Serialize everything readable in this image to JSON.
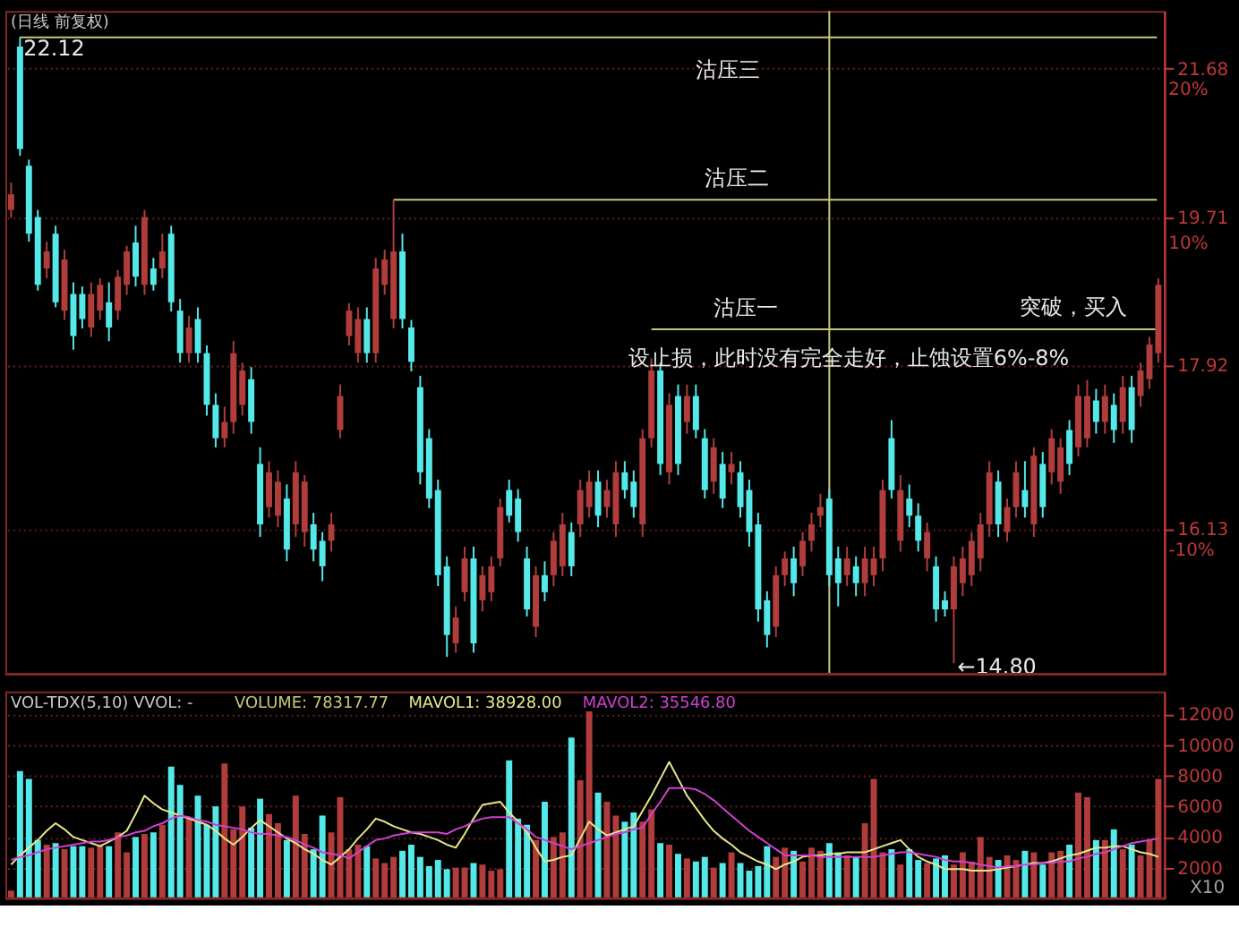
{
  "chart_data": [
    {
      "type": "candlestick",
      "title": "(日线 前复权)",
      "log": true,
      "tick_labels": "y",
      "grid": "y",
      "ylim": [
        14.7,
        22.5
      ],
      "yticks": [
        21.68,
        19.71,
        17.92,
        16.13
      ],
      "y2lim": [
        -19.4,
        23.8
      ],
      "y2ticks": [
        {
          "value": 20,
          "label": "20%"
        },
        {
          "value": 10,
          "label": "10%"
        },
        {
          "value": -10,
          "label": "-10%"
        }
      ],
      "categories": [
        null,
        null,
        null,
        null,
        null,
        null,
        null,
        null,
        null,
        null,
        null,
        null,
        null,
        null,
        null,
        null,
        null,
        null,
        null,
        null,
        null,
        null,
        null,
        null,
        null,
        null,
        null,
        null,
        null,
        null,
        null,
        null,
        null,
        null,
        null,
        null,
        null,
        null,
        null,
        null,
        null,
        null,
        null,
        null,
        null,
        null,
        null,
        null,
        null,
        null,
        null,
        null,
        null,
        null,
        null,
        null,
        null,
        null,
        null,
        null,
        null,
        null,
        null,
        null,
        null,
        null,
        null,
        null,
        null,
        null,
        null,
        null,
        null,
        null,
        null,
        null,
        null,
        null,
        null,
        null,
        null,
        null,
        null,
        null,
        null,
        null,
        null,
        null,
        null,
        null,
        null,
        null,
        null,
        null,
        null,
        null,
        null,
        null,
        null,
        null,
        null,
        null,
        null,
        null,
        null,
        null,
        null,
        null,
        null,
        null,
        null,
        null,
        null,
        null,
        null,
        null,
        null,
        null,
        null,
        null,
        null,
        null,
        null,
        null,
        null,
        null,
        null,
        null,
        null,
        null
      ],
      "ohlc": [
        [
          19.8,
          20.15,
          19.7,
          20.0
        ],
        [
          21.99,
          22.12,
          20.5,
          20.59
        ],
        [
          20.37,
          20.45,
          19.4,
          19.5
        ],
        [
          19.71,
          19.8,
          18.8,
          18.87
        ],
        [
          19.07,
          19.4,
          18.95,
          19.28
        ],
        [
          19.5,
          19.6,
          18.6,
          18.66
        ],
        [
          18.56,
          19.3,
          18.45,
          19.18
        ],
        [
          18.76,
          18.9,
          18.1,
          18.26
        ],
        [
          18.76,
          18.85,
          18.35,
          18.46
        ],
        [
          18.36,
          18.9,
          18.25,
          18.76
        ],
        [
          18.56,
          18.95,
          18.45,
          18.87
        ],
        [
          18.66,
          18.9,
          18.2,
          18.36
        ],
        [
          18.56,
          19.05,
          18.45,
          18.97
        ],
        [
          18.87,
          19.35,
          18.75,
          19.28
        ],
        [
          19.39,
          19.6,
          18.85,
          18.97
        ],
        [
          18.87,
          19.8,
          18.75,
          19.71
        ],
        [
          19.07,
          19.2,
          18.8,
          18.87
        ],
        [
          19.07,
          19.5,
          18.95,
          19.28
        ],
        [
          19.5,
          19.6,
          18.55,
          18.66
        ],
        [
          18.56,
          18.7,
          17.95,
          18.06
        ],
        [
          18.06,
          18.5,
          17.95,
          18.36
        ],
        [
          18.46,
          18.6,
          17.95,
          18.06
        ],
        [
          18.06,
          18.15,
          17.35,
          17.47
        ],
        [
          17.47,
          17.6,
          17.0,
          17.1
        ],
        [
          17.1,
          17.45,
          17.0,
          17.28
        ],
        [
          17.28,
          18.2,
          17.15,
          18.06
        ],
        [
          17.47,
          17.95,
          17.35,
          17.86
        ],
        [
          17.76,
          17.9,
          17.15,
          17.28
        ],
        [
          16.82,
          17.0,
          16.05,
          16.18
        ],
        [
          16.36,
          16.85,
          16.25,
          16.73
        ],
        [
          16.27,
          16.75,
          16.15,
          16.63
        ],
        [
          16.45,
          16.6,
          15.8,
          15.92
        ],
        [
          16.18,
          16.85,
          16.05,
          16.73
        ],
        [
          16.1,
          16.7,
          15.95,
          16.63
        ],
        [
          16.18,
          16.3,
          15.8,
          15.92
        ],
        [
          16.01,
          16.1,
          15.6,
          15.75
        ],
        [
          16.01,
          16.3,
          15.9,
          16.18
        ],
        [
          17.19,
          17.7,
          17.1,
          17.57
        ],
        [
          18.26,
          18.65,
          18.15,
          18.56
        ],
        [
          18.06,
          18.6,
          17.95,
          18.46
        ],
        [
          18.46,
          18.6,
          17.95,
          18.06
        ],
        [
          18.06,
          19.2,
          17.95,
          19.07
        ],
        [
          18.87,
          19.3,
          18.75,
          19.18
        ],
        [
          18.46,
          19.93,
          18.35,
          19.28
        ],
        [
          19.28,
          19.5,
          18.35,
          18.46
        ],
        [
          18.36,
          18.45,
          17.85,
          17.96
        ],
        [
          17.67,
          17.8,
          16.6,
          16.73
        ],
        [
          17.1,
          17.2,
          16.35,
          16.45
        ],
        [
          16.54,
          16.65,
          15.55,
          15.66
        ],
        [
          15.75,
          15.85,
          14.86,
          15.07
        ],
        [
          14.99,
          15.35,
          14.9,
          15.24
        ],
        [
          15.49,
          15.95,
          15.4,
          15.83
        ],
        [
          15.83,
          15.95,
          14.9,
          14.99
        ],
        [
          15.41,
          15.75,
          15.3,
          15.66
        ],
        [
          15.49,
          15.85,
          15.4,
          15.75
        ],
        [
          15.83,
          16.45,
          15.75,
          16.36
        ],
        [
          16.54,
          16.65,
          16.2,
          16.27
        ],
        [
          16.45,
          16.55,
          16.0,
          16.1
        ],
        [
          15.83,
          15.95,
          15.25,
          15.32
        ],
        [
          15.15,
          15.75,
          15.05,
          15.66
        ],
        [
          15.66,
          15.8,
          15.4,
          15.49
        ],
        [
          15.66,
          16.1,
          15.55,
          16.01
        ],
        [
          15.75,
          16.3,
          15.65,
          16.18
        ],
        [
          16.1,
          16.2,
          15.65,
          15.75
        ],
        [
          16.18,
          16.65,
          16.05,
          16.54
        ],
        [
          16.36,
          16.75,
          16.25,
          16.63
        ],
        [
          16.63,
          16.75,
          16.15,
          16.27
        ],
        [
          16.36,
          16.65,
          16.25,
          16.54
        ],
        [
          16.18,
          16.85,
          16.05,
          16.73
        ],
        [
          16.73,
          16.85,
          16.45,
          16.54
        ],
        [
          16.63,
          16.75,
          16.25,
          16.36
        ],
        [
          16.18,
          17.2,
          16.05,
          17.1
        ],
        [
          17.1,
          18.0,
          17.0,
          17.86
        ],
        [
          17.86,
          17.95,
          16.7,
          16.82
        ],
        [
          16.73,
          17.6,
          16.6,
          17.47
        ],
        [
          17.57,
          17.7,
          16.7,
          16.82
        ],
        [
          17.28,
          17.7,
          17.15,
          17.57
        ],
        [
          17.57,
          17.7,
          17.1,
          17.19
        ],
        [
          17.1,
          17.2,
          16.45,
          16.54
        ],
        [
          16.63,
          17.1,
          16.5,
          17.0
        ],
        [
          16.82,
          16.95,
          16.35,
          16.45
        ],
        [
          16.73,
          16.95,
          16.6,
          16.82
        ],
        [
          16.73,
          16.85,
          16.25,
          16.36
        ],
        [
          16.54,
          16.65,
          15.95,
          16.1
        ],
        [
          16.18,
          16.3,
          15.2,
          15.32
        ],
        [
          15.41,
          15.5,
          14.95,
          15.07
        ],
        [
          15.15,
          15.75,
          15.05,
          15.66
        ],
        [
          15.66,
          15.9,
          15.55,
          15.83
        ],
        [
          15.83,
          15.95,
          15.45,
          15.58
        ],
        [
          15.75,
          16.1,
          15.65,
          16.01
        ],
        [
          16.01,
          16.3,
          15.9,
          16.18
        ],
        [
          16.27,
          16.5,
          16.15,
          16.36
        ],
        [
          16.45,
          16.55,
          15.55,
          15.66
        ],
        [
          15.83,
          15.95,
          15.35,
          15.58
        ],
        [
          15.66,
          15.95,
          15.55,
          15.83
        ],
        [
          15.75,
          15.85,
          15.45,
          15.58
        ],
        [
          15.58,
          15.95,
          15.45,
          15.83
        ],
        [
          15.66,
          15.95,
          15.55,
          15.83
        ],
        [
          15.83,
          16.65,
          15.7,
          16.54
        ],
        [
          17.1,
          17.3,
          16.45,
          16.54
        ],
        [
          16.01,
          16.7,
          15.9,
          16.54
        ],
        [
          16.45,
          16.6,
          16.15,
          16.27
        ],
        [
          16.27,
          16.4,
          15.9,
          16.01
        ],
        [
          15.83,
          16.2,
          15.7,
          16.1
        ],
        [
          15.75,
          15.85,
          15.2,
          15.32
        ],
        [
          15.41,
          15.5,
          15.25,
          15.32
        ],
        [
          15.32,
          15.85,
          14.8,
          15.75
        ],
        [
          15.58,
          15.95,
          15.45,
          15.83
        ],
        [
          15.66,
          16.1,
          15.55,
          16.01
        ],
        [
          15.83,
          16.3,
          15.7,
          16.18
        ],
        [
          16.18,
          16.85,
          16.05,
          16.73
        ],
        [
          16.63,
          16.75,
          16.05,
          16.18
        ],
        [
          16.1,
          16.45,
          16.0,
          16.36
        ],
        [
          16.36,
          16.85,
          16.25,
          16.73
        ],
        [
          16.54,
          16.85,
          16.25,
          16.36
        ],
        [
          16.18,
          17.0,
          16.05,
          16.91
        ],
        [
          16.82,
          16.95,
          16.25,
          16.36
        ],
        [
          16.73,
          17.2,
          16.6,
          17.1
        ],
        [
          16.63,
          17.1,
          16.5,
          17.0
        ],
        [
          17.19,
          17.3,
          16.7,
          16.82
        ],
        [
          17.0,
          17.7,
          16.9,
          17.57
        ],
        [
          17.1,
          17.75,
          17.0,
          17.57
        ],
        [
          17.52,
          17.65,
          17.15,
          17.28
        ],
        [
          17.28,
          17.7,
          17.15,
          17.57
        ],
        [
          17.47,
          17.6,
          17.05,
          17.19
        ],
        [
          17.28,
          17.8,
          17.15,
          17.67
        ],
        [
          17.67,
          17.8,
          17.05,
          17.19
        ],
        [
          17.57,
          17.95,
          17.45,
          17.86
        ],
        [
          17.76,
          18.25,
          17.65,
          18.16
        ],
        [
          18.06,
          18.95,
          17.95,
          18.87
        ]
      ],
      "colors": [
        "#b03c3c",
        "#55e8e8",
        "#55e8e8",
        "#55e8e8",
        "#b03c3c",
        "#55e8e8",
        "#b03c3c",
        "#55e8e8",
        "#55e8e8",
        "#b03c3c",
        "#b03c3c",
        "#55e8e8",
        "#b03c3c",
        "#b03c3c",
        "#55e8e8",
        "#b03c3c",
        "#55e8e8",
        "#b03c3c",
        "#55e8e8",
        "#55e8e8",
        "#b03c3c",
        "#55e8e8",
        "#55e8e8",
        "#55e8e8",
        "#b03c3c",
        "#b03c3c",
        "#b03c3c",
        "#55e8e8",
        "#55e8e8",
        "#b03c3c",
        "#b03c3c",
        "#55e8e8",
        "#b03c3c",
        "#b03c3c",
        "#55e8e8",
        "#55e8e8",
        "#b03c3c",
        "#b03c3c",
        "#b03c3c",
        "#b03c3c",
        "#55e8e8",
        "#b03c3c",
        "#b03c3c",
        "#b03c3c",
        "#55e8e8",
        "#55e8e8",
        "#55e8e8",
        "#55e8e8",
        "#55e8e8",
        "#55e8e8",
        "#b03c3c",
        "#b03c3c",
        "#55e8e8",
        "#b03c3c",
        "#b03c3c",
        "#b03c3c",
        "#55e8e8",
        "#55e8e8",
        "#55e8e8",
        "#b03c3c",
        "#55e8e8",
        "#b03c3c",
        "#b03c3c",
        "#55e8e8",
        "#b03c3c",
        "#b03c3c",
        "#55e8e8",
        "#b03c3c",
        "#b03c3c",
        "#55e8e8",
        "#55e8e8",
        "#b03c3c",
        "#b03c3c",
        "#55e8e8",
        "#b03c3c",
        "#55e8e8",
        "#b03c3c",
        "#55e8e8",
        "#55e8e8",
        "#b03c3c",
        "#55e8e8",
        "#b03c3c",
        "#55e8e8",
        "#55e8e8",
        "#55e8e8",
        "#55e8e8",
        "#b03c3c",
        "#b03c3c",
        "#55e8e8",
        "#b03c3c",
        "#b03c3c",
        "#b03c3c",
        "#55e8e8",
        "#55e8e8",
        "#b03c3c",
        "#55e8e8",
        "#b03c3c",
        "#b03c3c",
        "#b03c3c",
        "#55e8e8",
        "#b03c3c",
        "#55e8e8",
        "#55e8e8",
        "#b03c3c",
        "#55e8e8",
        "#55e8e8",
        "#b03c3c",
        "#b03c3c",
        "#b03c3c",
        "#b03c3c",
        "#b03c3c",
        "#55e8e8",
        "#b03c3c",
        "#b03c3c",
        "#55e8e8",
        "#b03c3c",
        "#55e8e8",
        "#b03c3c",
        "#b03c3c",
        "#55e8e8",
        "#b03c3c",
        "#b03c3c",
        "#55e8e8",
        "#b03c3c",
        "#55e8e8",
        "#b03c3c",
        "#55e8e8",
        "#b03c3c",
        "#b03c3c",
        "#b03c3c"
      ],
      "ref_lines": [
        {
          "axis": "y",
          "value": 22.12,
          "label": "沽压三",
          "color": "#c8c878"
        },
        {
          "axis": "y",
          "value": 19.93,
          "label": "沽压二",
          "color": "#c8c878"
        },
        {
          "axis": "y",
          "value": 18.34,
          "label": "沽压一",
          "color": "#c8c878"
        }
      ],
      "annotations": [
        "22.12",
        "突破，买入",
        "设止损，此时没有完全走好，止蚀设置6%-8%",
        "←14.80"
      ]
    },
    {
      "type": "bar",
      "title": "VOL-TDX(5,10) VVOL: -",
      "tick_labels": "y",
      "grid": "y",
      "ylim": [
        0,
        13500
      ],
      "yticks": [
        2000,
        4000,
        6000,
        8000,
        10000,
        12000
      ],
      "categories": [
        null,
        null,
        null,
        null,
        null,
        null,
        null,
        null,
        null,
        null,
        null,
        null,
        null,
        null,
        null,
        null,
        null,
        null,
        null,
        null,
        null,
        null,
        null,
        null,
        null,
        null,
        null,
        null,
        null,
        null,
        null,
        null,
        null,
        null,
        null,
        null,
        null,
        null,
        null,
        null,
        null,
        null,
        null,
        null,
        null,
        null,
        null,
        null,
        null,
        null,
        null,
        null,
        null,
        null,
        null,
        null,
        null,
        null,
        null,
        null,
        null,
        null,
        null,
        null,
        null,
        null,
        null,
        null,
        null,
        null,
        null,
        null,
        null,
        null,
        null,
        null,
        null,
        null,
        null,
        null,
        null,
        null,
        null,
        null,
        null,
        null,
        null,
        null,
        null,
        null,
        null,
        null,
        null,
        null,
        null,
        null,
        null,
        null,
        null,
        null,
        null,
        null,
        null,
        null,
        null,
        null,
        null,
        null,
        null,
        null,
        null,
        null,
        null,
        null,
        null,
        null,
        null,
        null,
        null,
        null,
        null,
        null,
        null,
        null,
        null,
        null,
        null,
        null,
        null,
        null
      ],
      "series": [
        {
          "values": [
            500,
            8300,
            7800,
            3800,
            3500,
            3600,
            3200,
            3400,
            3400,
            3300,
            3500,
            3400,
            4300,
            3000,
            4000,
            4200,
            4300,
            4800,
            8600,
            7400,
            5300,
            6700,
            4800,
            6000,
            8800,
            4500,
            6000,
            4600,
            6500,
            5500,
            4900,
            3800,
            6700,
            4200,
            3200,
            5400,
            4300,
            6600,
            3200,
            3500,
            3400,
            2600,
            2300,
            2700,
            3100,
            3500,
            2700,
            2100,
            2500,
            1900,
            2000,
            2000,
            2300,
            2200,
            1800,
            1900,
            9000,
            5200,
            4800,
            3800,
            6300,
            4000,
            4300,
            10500,
            7700,
            12200,
            6900,
            6300,
            5400,
            5000,
            5600,
            5000,
            5800,
            3600,
            3500,
            2900,
            2600,
            2400,
            2700,
            2000,
            2300,
            3000,
            2300,
            1800,
            2100,
            3400,
            2700,
            3300,
            3100,
            2400,
            3300,
            3100,
            3600,
            3000,
            2800,
            2700,
            4900,
            7800,
            3000,
            3200,
            2200,
            3200,
            2500,
            2300,
            2600,
            2800,
            2200,
            3000,
            2400,
            4000,
            2700,
            2500,
            2800,
            2500,
            3100,
            3000,
            2200,
            3000,
            3100,
            3500,
            6900,
            6600,
            3800,
            3800,
            4500,
            3200,
            3500,
            2800,
            3800,
            7800
          ],
          "colors": [
            "#b03c3c",
            "#55e8e8",
            "#55e8e8",
            "#55e8e8",
            "#b03c3c",
            "#55e8e8",
            "#b03c3c",
            "#55e8e8",
            "#55e8e8",
            "#b03c3c",
            "#b03c3c",
            "#55e8e8",
            "#b03c3c",
            "#b03c3c",
            "#55e8e8",
            "#b03c3c",
            "#55e8e8",
            "#b03c3c",
            "#55e8e8",
            "#55e8e8",
            "#b03c3c",
            "#55e8e8",
            "#55e8e8",
            "#55e8e8",
            "#b03c3c",
            "#b03c3c",
            "#b03c3c",
            "#55e8e8",
            "#55e8e8",
            "#b03c3c",
            "#b03c3c",
            "#55e8e8",
            "#b03c3c",
            "#b03c3c",
            "#55e8e8",
            "#55e8e8",
            "#b03c3c",
            "#b03c3c",
            "#b03c3c",
            "#b03c3c",
            "#55e8e8",
            "#b03c3c",
            "#b03c3c",
            "#b03c3c",
            "#55e8e8",
            "#55e8e8",
            "#55e8e8",
            "#55e8e8",
            "#55e8e8",
            "#55e8e8",
            "#b03c3c",
            "#b03c3c",
            "#55e8e8",
            "#b03c3c",
            "#b03c3c",
            "#b03c3c",
            "#55e8e8",
            "#55e8e8",
            "#55e8e8",
            "#b03c3c",
            "#55e8e8",
            "#b03c3c",
            "#b03c3c",
            "#55e8e8",
            "#b03c3c",
            "#b03c3c",
            "#55e8e8",
            "#b03c3c",
            "#b03c3c",
            "#55e8e8",
            "#55e8e8",
            "#b03c3c",
            "#b03c3c",
            "#55e8e8",
            "#b03c3c",
            "#55e8e8",
            "#b03c3c",
            "#55e8e8",
            "#55e8e8",
            "#b03c3c",
            "#55e8e8",
            "#b03c3c",
            "#55e8e8",
            "#55e8e8",
            "#55e8e8",
            "#55e8e8",
            "#b03c3c",
            "#b03c3c",
            "#55e8e8",
            "#b03c3c",
            "#b03c3c",
            "#b03c3c",
            "#55e8e8",
            "#55e8e8",
            "#b03c3c",
            "#55e8e8",
            "#b03c3c",
            "#b03c3c",
            "#b03c3c",
            "#55e8e8",
            "#b03c3c",
            "#55e8e8",
            "#55e8e8",
            "#b03c3c",
            "#55e8e8",
            "#55e8e8",
            "#b03c3c",
            "#b03c3c",
            "#b03c3c",
            "#b03c3c",
            "#b03c3c",
            "#55e8e8",
            "#b03c3c",
            "#b03c3c",
            "#55e8e8",
            "#b03c3c",
            "#55e8e8",
            "#b03c3c",
            "#b03c3c",
            "#55e8e8",
            "#b03c3c",
            "#b03c3c",
            "#55e8e8",
            "#b03c3c",
            "#55e8e8",
            "#b03c3c",
            "#55e8e8",
            "#b03c3c",
            "#b03c3c",
            "#b03c3c"
          ]
        },
        {
          "name": "MAVOL1: 38928.00",
          "type": "line",
          "color": "#e6e68c",
          "values": [
            2200,
            2800,
            3300,
            3800,
            4400,
            4900,
            4500,
            4000,
            3800,
            3600,
            3400,
            3700,
            4000,
            4400,
            5500,
            6700,
            6200,
            5800,
            5600,
            5400,
            5200,
            5000,
            4800,
            4400,
            3900,
            3500,
            4000,
            4600,
            5100,
            4700,
            4300,
            3900,
            3600,
            3200,
            2900,
            2500,
            2200,
            2700,
            3200,
            3900,
            4500,
            5200,
            5000,
            4700,
            4500,
            4300,
            4200,
            4000,
            3800,
            3500,
            3300,
            4200,
            5200,
            6100,
            6200,
            6300,
            5600,
            5000,
            4300,
            3300,
            2400,
            2500,
            2700,
            2800,
            3900,
            5000,
            4500,
            4100,
            4300,
            4500,
            4700,
            5700,
            6700,
            7800,
            8900,
            7800,
            6700,
            5900,
            5100,
            4400,
            3900,
            3500,
            3000,
            2700,
            2400,
            2200,
            1900,
            2200,
            2400,
            2700,
            2800,
            2800,
            2900,
            2900,
            3000,
            3000,
            3000,
            3200,
            3400,
            3600,
            3800,
            3200,
            2700,
            2400,
            2200,
            1900,
            1900,
            1900,
            1800,
            1800,
            1800,
            1900,
            2000,
            2100,
            2200,
            2300,
            2300,
            2400,
            2600,
            2800,
            2900,
            3100,
            3300,
            3300,
            3400,
            3400,
            3200,
            3000,
            2900,
            2700
          ]
        },
        {
          "name": "MAVOL2: 35546.80",
          "type": "line",
          "color": "#d040d0",
          "values": [
            2500,
            2700,
            2800,
            3000,
            3200,
            3300,
            3400,
            3500,
            3600,
            3700,
            3700,
            3800,
            4000,
            4100,
            4300,
            4400,
            4700,
            4900,
            5200,
            5400,
            5300,
            5100,
            5000,
            4800,
            4700,
            4600,
            4500,
            4300,
            4200,
            4200,
            4100,
            4000,
            3800,
            3500,
            3300,
            3000,
            2900,
            2800,
            2600,
            3000,
            3400,
            3800,
            3900,
            4100,
            4200,
            4300,
            4300,
            4300,
            4300,
            4200,
            4500,
            4700,
            5000,
            5200,
            5300,
            5300,
            5300,
            4900,
            4500,
            4000,
            3800,
            3600,
            3400,
            3200,
            3400,
            3600,
            3800,
            4000,
            4200,
            4300,
            4500,
            4600,
            5500,
            6300,
            7200,
            7200,
            7200,
            7100,
            6800,
            6400,
            5900,
            5400,
            4900,
            4400,
            4000,
            3600,
            3200,
            2800,
            2800,
            2800,
            2800,
            2700,
            2700,
            2700,
            2700,
            2700,
            2700,
            2700,
            2800,
            2900,
            3000,
            3000,
            2900,
            2800,
            2700,
            2500,
            2400,
            2400,
            2300,
            2200,
            2100,
            2000,
            2100,
            2100,
            2200,
            2200,
            2300,
            2300,
            2400,
            2400,
            2600,
            2700,
            2900,
            3000,
            3200,
            3400,
            3600,
            3700,
            3800,
            3900
          ]
        }
      ],
      "annotations": [
        "VOLUME: 78317.77",
        "X10"
      ]
    }
  ]
}
